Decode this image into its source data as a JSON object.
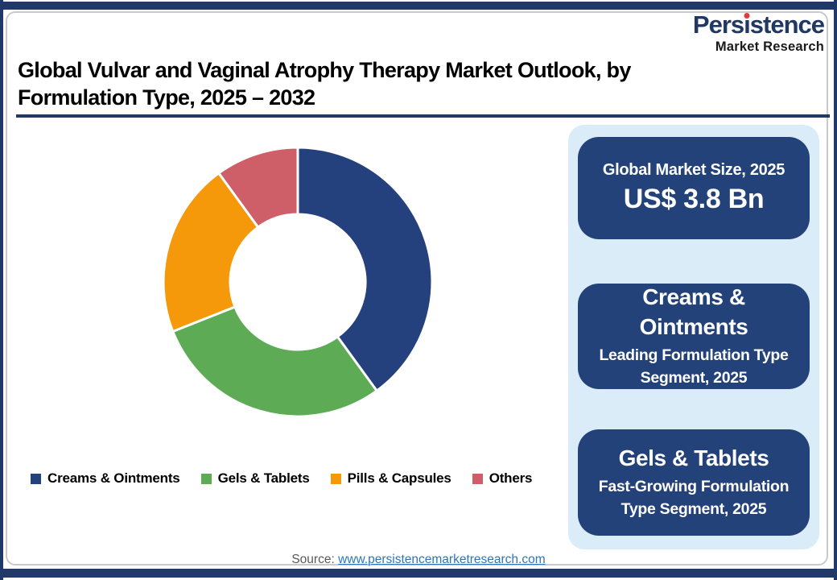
{
  "logo": {
    "name": "Persistence",
    "name_parts": [
      "Pers",
      "ı",
      "stence"
    ],
    "tagline": "Market Research",
    "colors": {
      "name_navy": "#1f3864",
      "dot_red": "#e03a3e",
      "tagline_black": "#1a1a1a"
    }
  },
  "title": {
    "line1": "Global Vulvar and Vaginal Atrophy Therapy Market Outlook, by",
    "line2": "Formulation Type, 2025 – 2032"
  },
  "chart_data": {
    "type": "pie",
    "subtype": "donut",
    "title": "Global Vulvar and Vaginal Atrophy Therapy Market, by Formulation Type, 2025",
    "categories": [
      "Creams & Ointments",
      "Gels & Tablets",
      "Pills & Capsules",
      "Others"
    ],
    "values": [
      40,
      29,
      21,
      10
    ],
    "unit": "% share, estimated from arc angles (no data labels shown on chart)",
    "colors": [
      "#24417e",
      "#5dac55",
      "#f5990b",
      "#ce5e68"
    ],
    "start_angle_deg": 0,
    "direction": "clockwise",
    "inner_radius_ratio": 0.5,
    "legend_position": "bottom",
    "data_labels_shown": false
  },
  "sidebar": {
    "cards": [
      {
        "heading": "Global Market Size, 2025",
        "value": "US$ 3.8 Bn"
      },
      {
        "heading": "Creams & Ointments",
        "subtext": "Leading Formulation Type Segment, 2025"
      },
      {
        "heading": "Gels & Tablets",
        "subtext": "Fast-Growing Formulation Type Segment, 2025"
      }
    ]
  },
  "source": {
    "label": "Source:",
    "link": "www.persistencemarketresearch.com"
  },
  "theme": {
    "frame_navy": "#21386b",
    "title_rule_navy": "#1f3864",
    "card_navy": "#24427a",
    "panel_light_blue": "#d9ecf8",
    "link_blue": "#2e75b6",
    "source_gray": "#595959",
    "border_gray": "#c9c9c9"
  }
}
